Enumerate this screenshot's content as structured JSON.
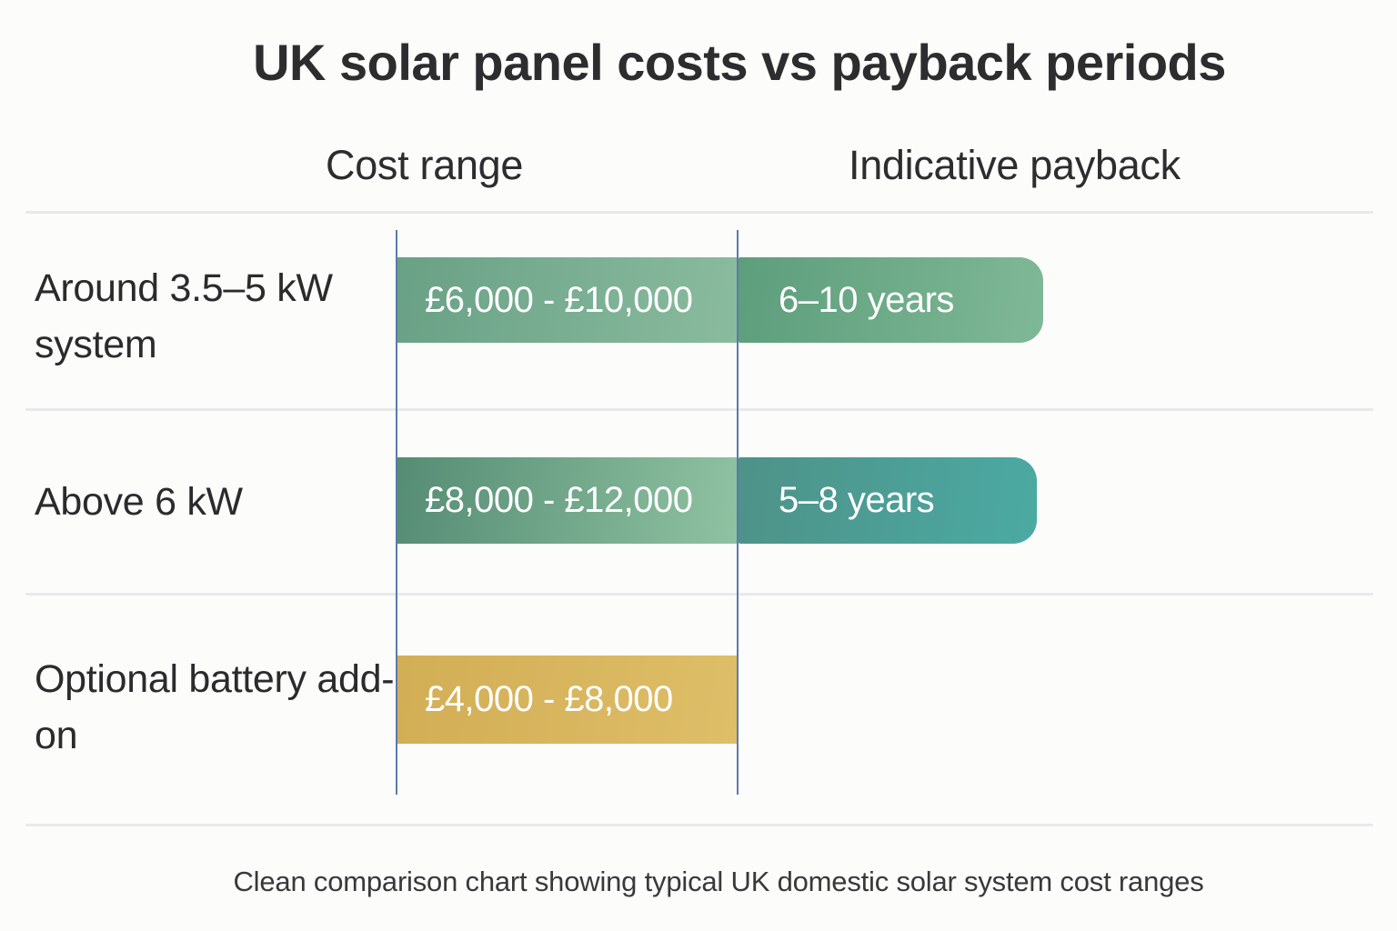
{
  "title": "UK solar panel costs vs payback periods",
  "caption": "Clean comparison chart showing typical UK domestic solar system cost ranges",
  "columns": {
    "cost": "Cost range",
    "payback": "Indicative payback"
  },
  "rows": [
    {
      "label": "Around 3.5–5 kW system",
      "cost": {
        "text": "£6,000 - £10,000",
        "colors": [
          "#69a186",
          "#8abb9e"
        ]
      },
      "payback": {
        "text": "6–10 years",
        "colors": [
          "#5d9e7c",
          "#7fb896"
        ]
      }
    },
    {
      "label": "Above 6 kW",
      "cost": {
        "text": "£8,000 - £12,000",
        "colors": [
          "#558c74",
          "#8fc2a1"
        ]
      },
      "payback": {
        "text": "5–8 years",
        "colors": [
          "#4e9288",
          "#4baaa3"
        ]
      }
    },
    {
      "label": "Optional battery add-on",
      "cost": {
        "text": "£4,000 - £8,000",
        "colors": [
          "#d2ae55",
          "#debe68"
        ]
      },
      "payback": null
    }
  ],
  "styles": {
    "background": "#fcfcfb",
    "divider_color": "#e9e9ec",
    "gridline_color": "#5b7aad",
    "heading_text_color": "#2d2d2f",
    "bar_text_color": "#ffffff",
    "gold_accent": "#d7b45f",
    "green_accent": "#6aa287",
    "teal_accent": "#4aa9a2"
  },
  "chart_data": {
    "type": "bar",
    "title": "UK solar panel costs vs payback periods",
    "categories": [
      "Around 3.5–5 kW system",
      "Above 6 kW",
      "Optional battery add-on"
    ],
    "series": [
      {
        "name": "Cost range",
        "unit": "GBP",
        "labels": [
          "£6,000 - £10,000",
          "£8,000 - £12,000",
          "£4,000 - £8,000"
        ],
        "ranges": [
          [
            6000,
            10000
          ],
          [
            8000,
            12000
          ],
          [
            4000,
            8000
          ]
        ]
      },
      {
        "name": "Indicative payback",
        "unit": "years",
        "labels": [
          "6–10 years",
          "5–8 years",
          null
        ],
        "ranges": [
          [
            6,
            10
          ],
          [
            5,
            8
          ],
          null
        ]
      }
    ],
    "orientation": "horizontal",
    "legend": false,
    "grid": "two vertical column separator lines, horizontal row dividers",
    "caption": "Clean comparison chart showing typical UK domestic solar system cost ranges"
  }
}
